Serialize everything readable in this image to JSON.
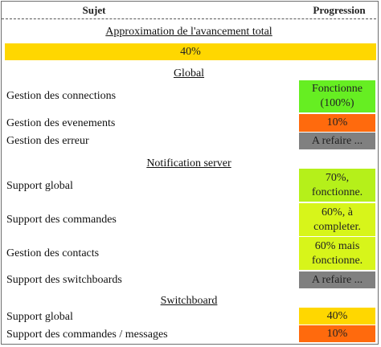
{
  "header": {
    "subject": "Sujet",
    "progress": "Progression"
  },
  "overall": {
    "title": "Approximation de l'avancement total",
    "value": "40%",
    "color": "#ffd700"
  },
  "sections": {
    "global": {
      "title": "Global",
      "rows": [
        {
          "label": "Gestion des connections",
          "status": "Fonctionne (100%)",
          "color": "#66ee22"
        },
        {
          "label": "Gestion des evenements",
          "status": "10%",
          "color": "#ff6a0d"
        },
        {
          "label": "Gestion des erreur",
          "status": "A refaire ...",
          "color": "#808080"
        }
      ]
    },
    "notification": {
      "title": "Notification server",
      "rows": [
        {
          "label": "Support global",
          "status": "70%, fonctionne.",
          "color": "#b5f01a"
        },
        {
          "label": "Support des commandes",
          "status": "60%, à completer.",
          "color": "#d7f51a"
        },
        {
          "label": "Gestion des contacts",
          "status": "60% mais fonctionne.",
          "color": "#d7f51a"
        },
        {
          "label": "Support des switchboards",
          "status": "A refaire ...",
          "color": "#808080"
        }
      ]
    },
    "switchboard": {
      "title": "Switchboard",
      "rows": [
        {
          "label": "Support global",
          "status": "40%",
          "color": "#ffd700"
        },
        {
          "label": "Support des commandes / messages",
          "status": "10%",
          "color": "#ff6a0d"
        }
      ]
    }
  }
}
